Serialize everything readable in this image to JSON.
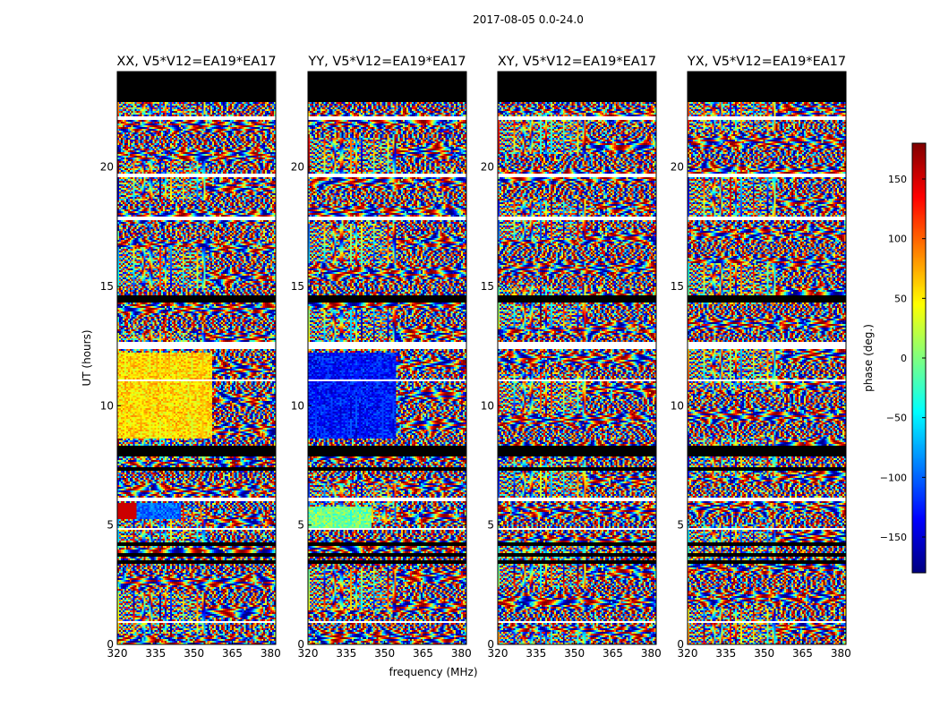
{
  "chart_data": {
    "type": "heatmap",
    "suptitle": "2017-08-05 0.0-24.0",
    "xlabel": "frequency (MHz)",
    "ylabel": "UT (hours)",
    "xlim": [
      320,
      382
    ],
    "ylim": [
      0,
      24
    ],
    "x_ticks": [
      320,
      335,
      350,
      365,
      380
    ],
    "y_ticks": [
      0,
      5,
      10,
      15,
      20
    ],
    "panels": [
      {
        "title": "XX, V5*V12=EA19*EA17",
        "warm_band_utc": [
          8.6,
          12.2
        ],
        "hot_feature_utc": 5.6
      },
      {
        "title": "YY, V5*V12=EA19*EA17",
        "cool_band_utc": [
          8.6,
          12.2
        ],
        "cool_feature_utc": 5.3
      },
      {
        "title": "XY, V5*V12=EA19*EA17"
      },
      {
        "title": "YX, V5*V12=EA19*EA17"
      }
    ],
    "flagged_black_bands_utc": [
      [
        22.7,
        24.0
      ],
      [
        14.3,
        14.6
      ],
      [
        7.9,
        8.3
      ],
      [
        7.3,
        7.45
      ],
      [
        4.1,
        4.3
      ],
      [
        3.7,
        3.85
      ],
      [
        3.4,
        3.55
      ]
    ],
    "gap_white_bands_utc": [
      [
        22.0,
        22.15
      ],
      [
        19.6,
        19.75
      ],
      [
        17.8,
        17.95
      ],
      [
        12.4,
        12.7
      ],
      [
        11.0,
        11.1
      ],
      [
        6.0,
        6.15
      ],
      [
        4.8,
        4.9
      ],
      [
        0.9,
        1.0
      ]
    ],
    "colorbar": {
      "label": "phase (deg.)",
      "range": [
        -180,
        180
      ],
      "ticks": [
        -150,
        -100,
        -50,
        0,
        50,
        100,
        150
      ],
      "tick_labels": [
        "−150",
        "−100",
        "−50",
        "0",
        "50",
        "100",
        "150"
      ],
      "colormap": "jet"
    }
  }
}
